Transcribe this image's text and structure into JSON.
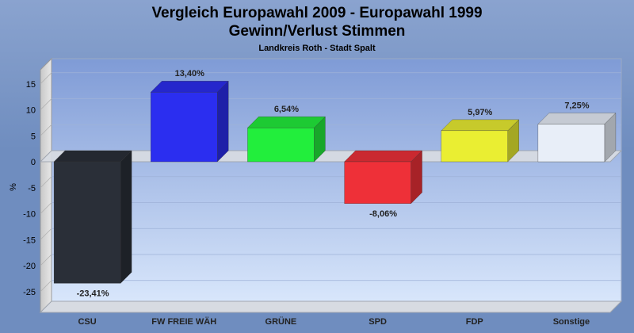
{
  "header": {
    "title_line1": "Vergleich Europawahl 2009 - Europawahl 1999",
    "title_line2": "Gewinn/Verlust Stimmen",
    "subtitle": "Landkreis Roth - Stadt Spalt"
  },
  "chart_data": {
    "type": "bar",
    "title": "Vergleich Europawahl 2009 - Europawahl 1999",
    "subtitle": "Gewinn/Verlust Stimmen",
    "region": "Landkreis Roth - Stadt Spalt",
    "ylabel": "%",
    "xlabel": "",
    "ylim": [
      -27,
      18
    ],
    "yticks": [
      15,
      10,
      5,
      0,
      -5,
      -10,
      -15,
      -20,
      -25
    ],
    "grid": true,
    "legend": "none",
    "categories": [
      "CSU",
      "FW FREIE WÄH",
      "GRÜNE",
      "SPD",
      "FDP",
      "Sonstige"
    ],
    "values": [
      -23.41,
      13.4,
      6.54,
      -8.06,
      5.97,
      7.25
    ],
    "value_labels": [
      "-23,41%",
      "13,40%",
      "6,54%",
      "-8,06%",
      "5,97%",
      "7,25%"
    ],
    "colors": [
      "#2a2f38",
      "#2b2ef0",
      "#22ee3c",
      "#ee3038",
      "#eaee32",
      "#e8eef8"
    ]
  }
}
